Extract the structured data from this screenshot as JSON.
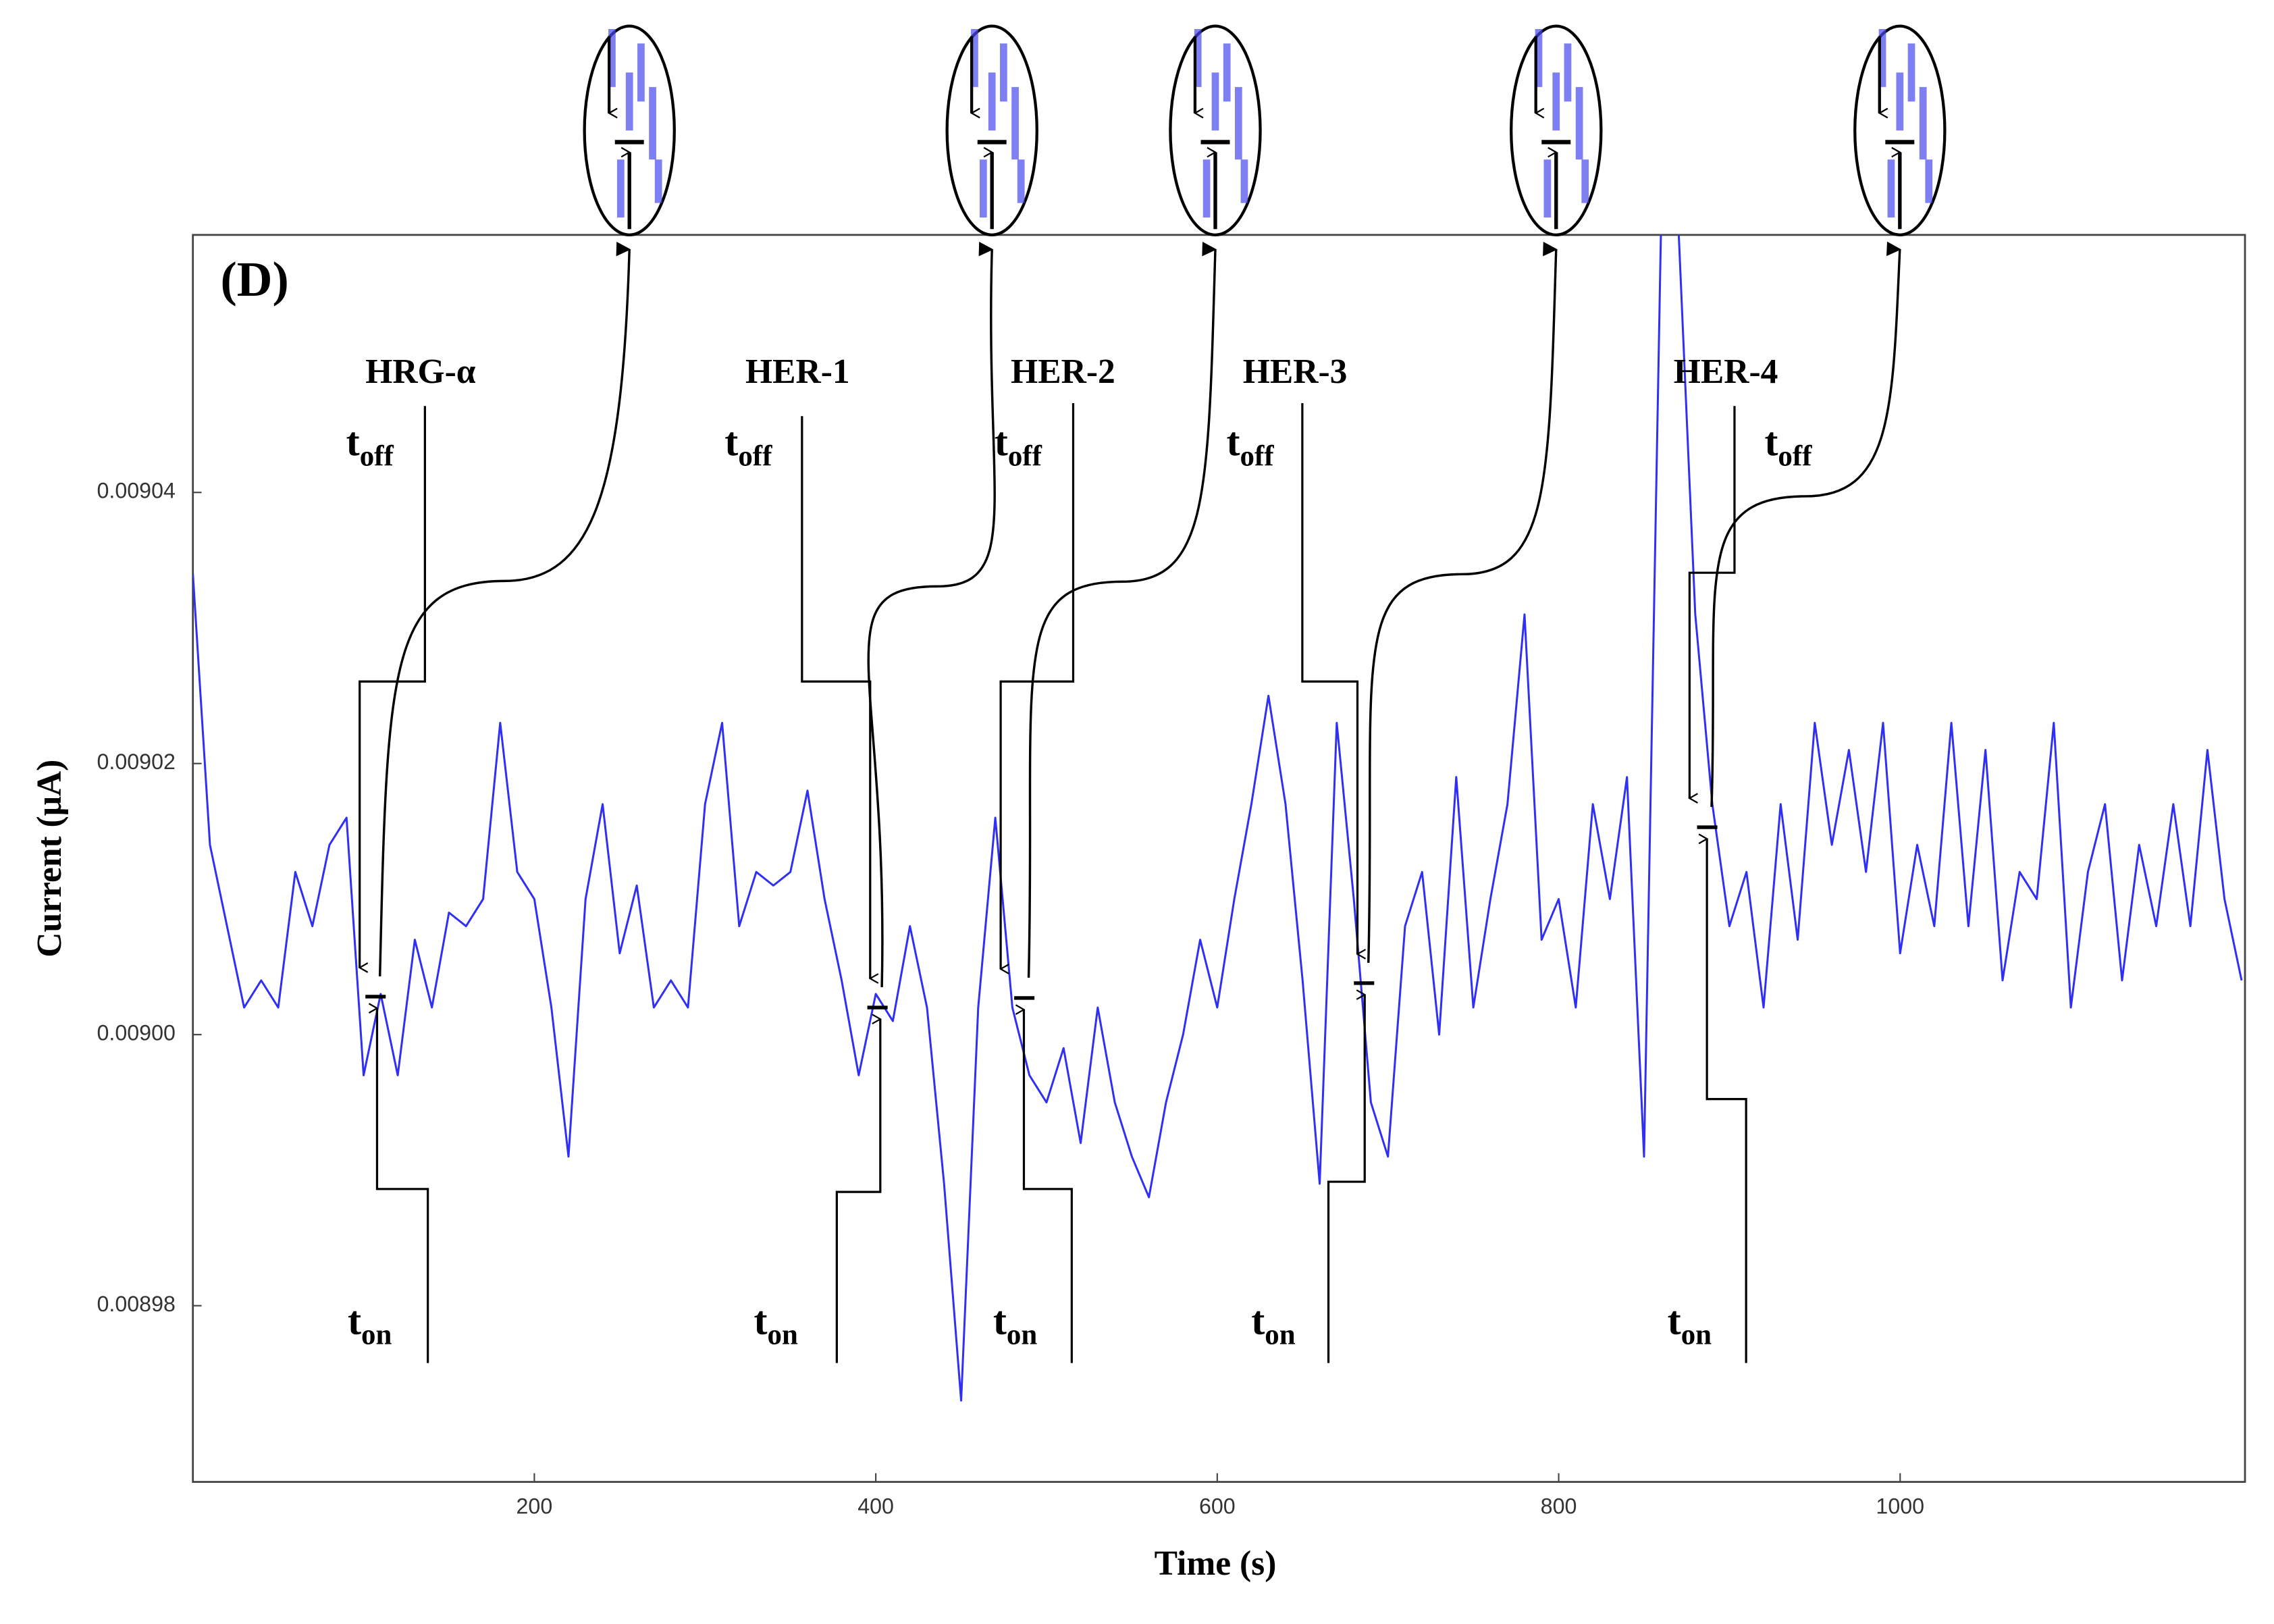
{
  "chart_data": {
    "type": "line",
    "title": "(D)",
    "xlabel": "Time (s)",
    "ylabel": "Current (μA)",
    "color": "#2f2ff5",
    "xlim": [
      0,
      1202
    ],
    "ylim": [
      0.008967,
      0.009059
    ],
    "xticks": [
      200,
      400,
      600,
      800,
      1000
    ],
    "yticks": [
      0.00898,
      {
        "value": 0.009,
        "label": "0.00900"
      },
      0.00902,
      0.00904
    ],
    "x": [
      0,
      10,
      20,
      30,
      40,
      50,
      60,
      70,
      80,
      90,
      100,
      110,
      120,
      130,
      140,
      150,
      160,
      170,
      180,
      190,
      200,
      210,
      220,
      230,
      240,
      250,
      260,
      270,
      280,
      290,
      300,
      310,
      320,
      330,
      340,
      350,
      360,
      370,
      380,
      390,
      400,
      410,
      420,
      430,
      440,
      450,
      460,
      470,
      480,
      490,
      500,
      510,
      520,
      530,
      540,
      550,
      560,
      570,
      580,
      590,
      600,
      610,
      620,
      630,
      640,
      650,
      660,
      670,
      680,
      690,
      700,
      710,
      720,
      730,
      740,
      750,
      760,
      770,
      780,
      790,
      800,
      810,
      820,
      830,
      840,
      850,
      860,
      870,
      880,
      890,
      900,
      910,
      920,
      930,
      940,
      950,
      960,
      970,
      980,
      990,
      1000,
      1010,
      1020,
      1030,
      1040,
      1050,
      1060,
      1070,
      1080,
      1090,
      1100,
      1110,
      1120,
      1130,
      1140,
      1150,
      1160,
      1170,
      1180,
      1190,
      1200
    ],
    "values": [
      0.009034,
      0.009014,
      0.009008,
      0.009002,
      0.009004,
      0.009002,
      0.009012,
      0.009008,
      0.009014,
      0.009016,
      0.008997,
      0.009003,
      0.008997,
      0.009007,
      0.009002,
      0.009009,
      0.009008,
      0.00901,
      0.009023,
      0.009012,
      0.00901,
      0.009002,
      0.008991,
      0.00901,
      0.009017,
      0.009006,
      0.009011,
      0.009002,
      0.009004,
      0.009002,
      0.009017,
      0.009023,
      0.009008,
      0.009012,
      0.009011,
      0.009012,
      0.009018,
      0.00901,
      0.009004,
      0.008997,
      0.009003,
      0.009001,
      0.009008,
      0.009002,
      0.008989,
      0.008973,
      0.009002,
      0.009016,
      0.009002,
      0.008997,
      0.008995,
      0.008999,
      0.008992,
      0.009002,
      0.008995,
      0.008991,
      0.008988,
      0.008995,
      0.009,
      0.009007,
      0.009002,
      0.00901,
      0.009017,
      0.009025,
      0.009017,
      0.009004,
      0.008989,
      0.009023,
      0.00901,
      0.008995,
      0.008991,
      0.009008,
      0.009012,
      0.009,
      0.009019,
      0.009002,
      0.00901,
      0.009017,
      0.009031,
      0.009007,
      0.00901,
      0.009002,
      0.009017,
      0.00901,
      0.009019,
      0.008991,
      0.00906,
      0.00906,
      0.009031,
      0.009017,
      0.009008,
      0.009012,
      0.009002,
      0.009017,
      0.009007,
      0.009023,
      0.009014,
      0.009021,
      0.009012,
      0.009023,
      0.009006,
      0.009014,
      0.009008,
      0.009023,
      0.009008,
      0.009021,
      0.009004,
      0.009012,
      0.00901,
      0.009023,
      0.009002,
      0.009012,
      0.009017,
      0.009004,
      0.009014,
      0.009008,
      0.009017,
      0.009008,
      0.009021,
      0.00901,
      0.009004
    ],
    "events": [
      {
        "label": "HRG-α",
        "time": 107,
        "current": 0.0090028
      },
      {
        "label": "HER-1",
        "time": 401,
        "current": 0.009002
      },
      {
        "label": "HER-2",
        "time": 487,
        "current": 0.0090027
      },
      {
        "label": "HER-3",
        "time": 686,
        "current": 0.0090038
      },
      {
        "label": "HER-4",
        "time": 887,
        "current": 0.0090153
      }
    ],
    "off_label": {
      "symbol": "t",
      "subscript": "off"
    },
    "on_label": {
      "symbol": "t",
      "subscript": "on"
    }
  }
}
